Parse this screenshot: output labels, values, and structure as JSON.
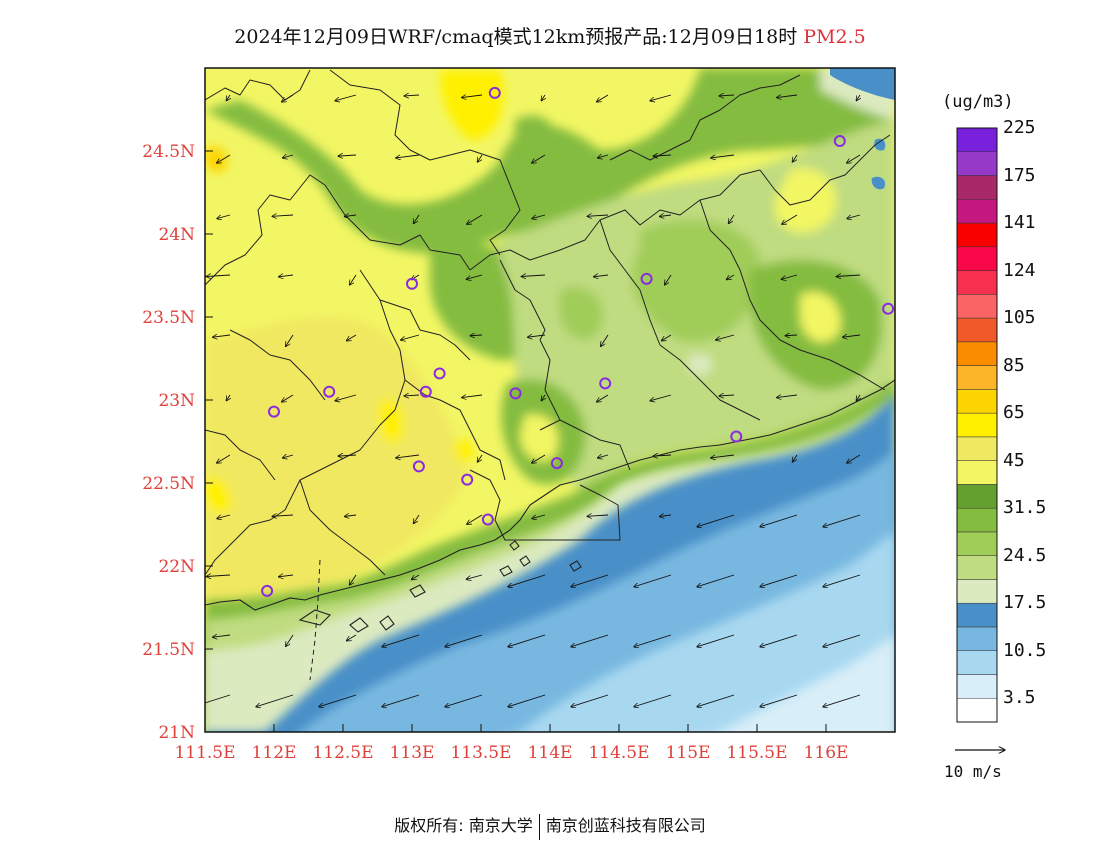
{
  "header": {
    "title": "2024年12月09日WRF/cmaq模式12km预报产品:12月09日18时",
    "species": "PM2.5"
  },
  "map": {
    "lon_range": [
      111.5,
      116.5
    ],
    "lat_range": [
      21,
      25
    ],
    "lon_ticks": [
      "111.5E",
      "112E",
      "112.5E",
      "113E",
      "113.5E",
      "114E",
      "114.5E",
      "115E",
      "115.5E",
      "116E"
    ],
    "lat_ticks": [
      "21N",
      "21.5N",
      "22N",
      "22.5N",
      "23N",
      "23.5N",
      "24N",
      "24.5N"
    ],
    "stations": [
      {
        "lon": 113.6,
        "lat": 24.85
      },
      {
        "lon": 113.0,
        "lat": 23.7
      },
      {
        "lon": 112.0,
        "lat": 22.93
      },
      {
        "lon": 112.4,
        "lat": 23.05
      },
      {
        "lon": 113.1,
        "lat": 23.05
      },
      {
        "lon": 113.2,
        "lat": 23.16
      },
      {
        "lon": 113.75,
        "lat": 23.04
      },
      {
        "lon": 114.4,
        "lat": 23.1
      },
      {
        "lon": 114.7,
        "lat": 23.73
      },
      {
        "lon": 116.1,
        "lat": 24.56
      },
      {
        "lon": 116.45,
        "lat": 23.55
      },
      {
        "lon": 115.35,
        "lat": 22.78
      },
      {
        "lon": 114.05,
        "lat": 22.62
      },
      {
        "lon": 113.05,
        "lat": 22.6
      },
      {
        "lon": 113.4,
        "lat": 22.52
      },
      {
        "lon": 113.55,
        "lat": 22.28
      },
      {
        "lon": 111.95,
        "lat": 21.85
      }
    ]
  },
  "legend": {
    "unit": "(ug/m3)",
    "colors": [
      "#ffffff",
      "#d8eef8",
      "#a8d8f0",
      "#78b8e0",
      "#4a90c8",
      "#dceac0",
      "#c0dc80",
      "#a0cc58",
      "#84bc40",
      "#64a030",
      "#f2f664",
      "#f0e860",
      "#fff000",
      "#fcd400",
      "#fcb428",
      "#fa8c00",
      "#f05a28",
      "#fa6464",
      "#f83050",
      "#f80848",
      "#f80000",
      "#c41880",
      "#a82868",
      "#9638c8",
      "#7820dc"
    ],
    "labels": [
      "3.5",
      "10.5",
      "17.5",
      "24.5",
      "31.5",
      "45",
      "65",
      "85",
      "105",
      "124",
      "141",
      "175",
      "225"
    ]
  },
  "wind": {
    "scale_label": "10 m/s"
  },
  "footer": {
    "left": "版权所有: 南京大学",
    "right": "南京创蓝科技有限公司"
  }
}
